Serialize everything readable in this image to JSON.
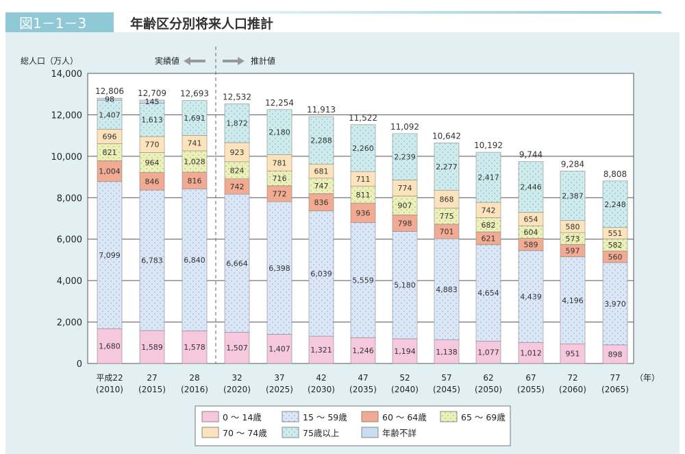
{
  "header": {
    "figure_label": "図1－1－3",
    "title": "年齢区分別将来人口推計"
  },
  "chart_data": {
    "type": "bar",
    "stacked": true,
    "title": "年齢区分別将来人口推計",
    "ylabel": "総人口（万人）",
    "xlabel_unit": "（年）",
    "ylim": [
      0,
      14000
    ],
    "yticks": [
      "0",
      "2,000",
      "4,000",
      "6,000",
      "8,000",
      "10,000",
      "12,000",
      "14,000"
    ],
    "grid": true,
    "annotations": {
      "actual": "実績値",
      "projection": "推計値"
    },
    "categories": [
      [
        "平成22",
        "(2010)"
      ],
      [
        "27",
        "(2015)"
      ],
      [
        "28",
        "(2016)"
      ],
      [
        "32",
        "(2020)"
      ],
      [
        "37",
        "(2025)"
      ],
      [
        "42",
        "(2030)"
      ],
      [
        "47",
        "(2035)"
      ],
      [
        "52",
        "(2040)"
      ],
      [
        "57",
        "(2045)"
      ],
      [
        "62",
        "(2050)"
      ],
      [
        "67",
        "(2055)"
      ],
      [
        "72",
        "(2060)"
      ],
      [
        "77",
        "(2065)"
      ]
    ],
    "totals": [
      "12,806",
      "12,709",
      "12,693",
      "12,532",
      "12,254",
      "11,913",
      "11,522",
      "11,092",
      "10,642",
      "10,192",
      "9,744",
      "9,284",
      "8,808"
    ],
    "legend_position": "bottom",
    "series": [
      {
        "name": "0 ～ 14歳",
        "color": "#f6c8dd",
        "values": [
          1680,
          1589,
          1578,
          1507,
          1407,
          1321,
          1246,
          1194,
          1138,
          1077,
          1012,
          951,
          898
        ]
      },
      {
        "name": "15 ～ 59歳",
        "color": "#dbe7f7",
        "values": [
          7099,
          6783,
          6840,
          6664,
          6398,
          6039,
          5559,
          5180,
          4883,
          4654,
          4439,
          4196,
          3970
        ]
      },
      {
        "name": "60 ～ 64歳",
        "color": "#f2ab93",
        "values": [
          1004,
          846,
          816,
          742,
          772,
          836,
          936,
          798,
          701,
          621,
          589,
          597,
          560
        ]
      },
      {
        "name": "65 ～ 69歳",
        "color": "#eef1b4",
        "values": [
          821,
          964,
          1028,
          824,
          716,
          747,
          811,
          907,
          775,
          682,
          604,
          573,
          582
        ]
      },
      {
        "name": "70 ～ 74歳",
        "color": "#fde3bc",
        "values": [
          696,
          770,
          741,
          923,
          781,
          681,
          711,
          774,
          868,
          742,
          654,
          580,
          551
        ]
      },
      {
        "name": "75歳以上",
        "color": "#cdeceb",
        "values": [
          1407,
          1613,
          1691,
          1872,
          2180,
          2288,
          2260,
          2239,
          2277,
          2417,
          2446,
          2387,
          2248
        ]
      },
      {
        "name": "年齢不詳",
        "color": "#c9dcf1",
        "values": [
          98,
          145,
          null,
          null,
          null,
          null,
          null,
          null,
          null,
          null,
          null,
          null,
          null
        ]
      }
    ]
  }
}
